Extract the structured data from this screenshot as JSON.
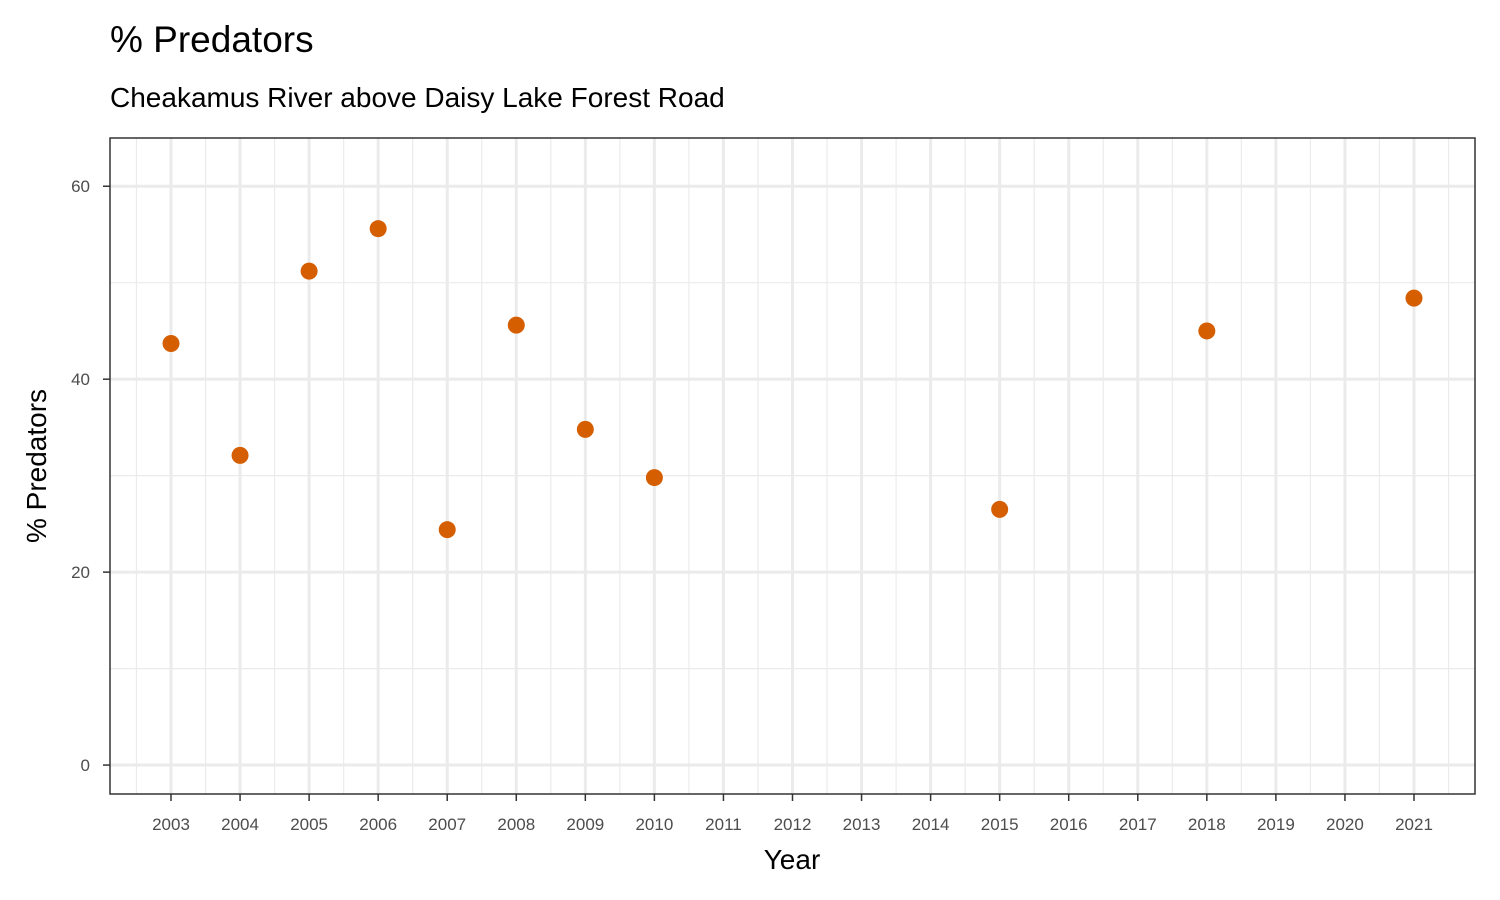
{
  "chart_data": {
    "type": "scatter",
    "title": "% Predators",
    "subtitle": "Cheakamus River above Daisy Lake Forest Road",
    "xlabel": "Year",
    "ylabel": "% Predators",
    "x_categories": [
      "2003",
      "2004",
      "2005",
      "2006",
      "2007",
      "2008",
      "2009",
      "2010",
      "2011",
      "2012",
      "2013",
      "2014",
      "2015",
      "2016",
      "2017",
      "2018",
      "2019",
      "2020",
      "2021"
    ],
    "y_ticks": [
      0,
      20,
      40,
      60
    ],
    "ylim": [
      -3,
      65
    ],
    "grid": true,
    "point_color": "#D55E00",
    "series": [
      {
        "points": [
          {
            "x": "2003",
            "y": 43.7
          },
          {
            "x": "2004",
            "y": 32.1
          },
          {
            "x": "2005",
            "y": 51.2
          },
          {
            "x": "2006",
            "y": 55.6
          },
          {
            "x": "2007",
            "y": 24.4
          },
          {
            "x": "2008",
            "y": 45.6
          },
          {
            "x": "2009",
            "y": 34.8
          },
          {
            "x": "2010",
            "y": 29.8
          },
          {
            "x": "2015",
            "y": 26.5
          },
          {
            "x": "2018",
            "y": 45.0
          },
          {
            "x": "2021",
            "y": 48.4
          }
        ]
      }
    ]
  }
}
